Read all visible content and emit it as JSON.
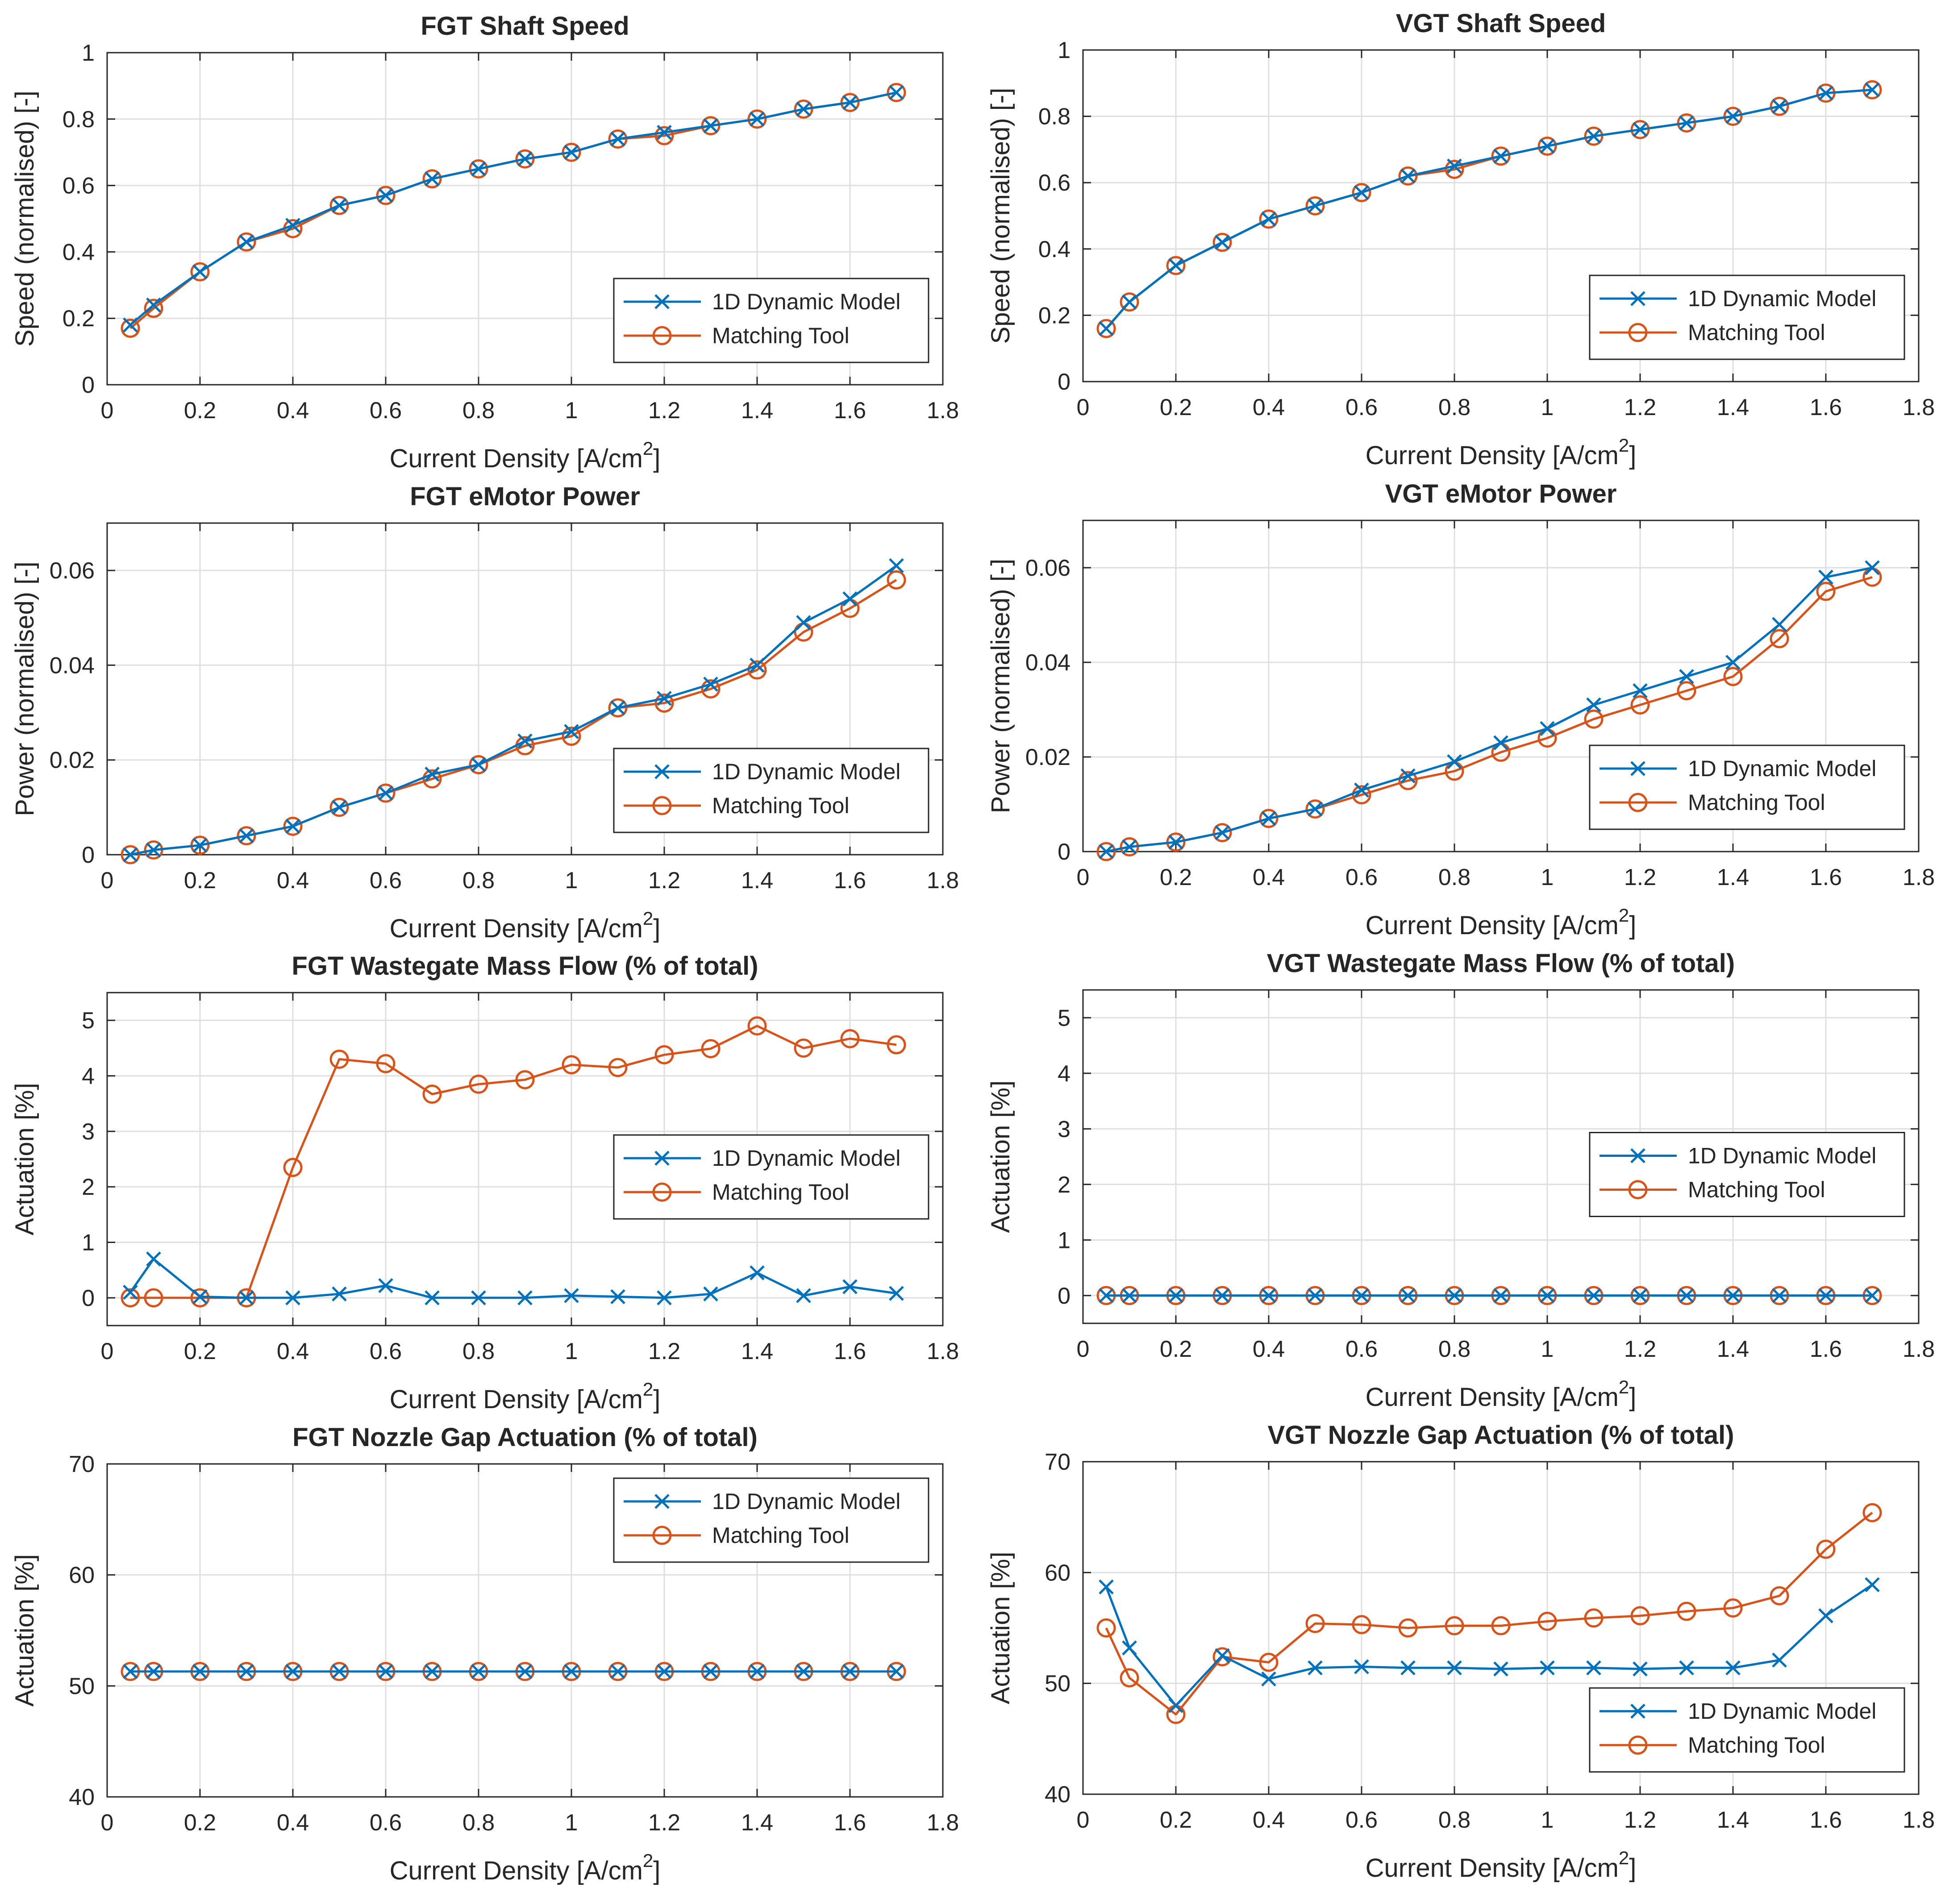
{
  "colors": {
    "model": "#0072BD",
    "tool": "#D95319"
  },
  "legend": {
    "model": "1D Dynamic Model",
    "tool": "Matching Tool"
  },
  "chart_data": [
    {
      "id": "fgt-shaft-speed",
      "type": "line",
      "title": "FGT Shaft Speed",
      "xlabel": "Current Density [A/cm",
      "xlabel_sup": "2",
      "xlabel_end": "]",
      "ylabel": "Speed (normalised) [-]",
      "xlim": [
        0,
        1.8
      ],
      "ylim": [
        0,
        1
      ],
      "xticks": [
        0,
        0.2,
        0.4,
        0.6,
        0.8,
        1,
        1.2,
        1.4,
        1.6,
        1.8
      ],
      "xticklabels": [
        "0",
        "0.2",
        "0.4",
        "0.6",
        "0.8",
        "1",
        "1.2",
        "1.4",
        "1.6",
        "1.8"
      ],
      "yticks": [
        0,
        0.2,
        0.4,
        0.6,
        0.8,
        1
      ],
      "yticklabels": [
        "0",
        "0.2",
        "0.4",
        "0.6",
        "0.8",
        "1"
      ],
      "legend_position": "bottom-right",
      "x": [
        0.05,
        0.1,
        0.2,
        0.3,
        0.4,
        0.5,
        0.6,
        0.7,
        0.8,
        0.9,
        1.0,
        1.1,
        1.2,
        1.3,
        1.4,
        1.5,
        1.6,
        1.7
      ],
      "series": [
        {
          "name": "1D Dynamic Model",
          "values": [
            0.18,
            0.24,
            0.34,
            0.43,
            0.48,
            0.54,
            0.57,
            0.62,
            0.65,
            0.68,
            0.7,
            0.74,
            0.76,
            0.78,
            0.8,
            0.83,
            0.85,
            0.88
          ]
        },
        {
          "name": "Matching Tool",
          "values": [
            0.17,
            0.23,
            0.34,
            0.43,
            0.47,
            0.54,
            0.57,
            0.62,
            0.65,
            0.68,
            0.7,
            0.74,
            0.75,
            0.78,
            0.8,
            0.83,
            0.85,
            0.88
          ]
        }
      ]
    },
    {
      "id": "vgt-shaft-speed",
      "type": "line",
      "title": "VGT Shaft Speed",
      "xlabel": "Current Density [A/cm",
      "xlabel_sup": "2",
      "xlabel_end": "]",
      "ylabel": "Speed (normalised) [-]",
      "xlim": [
        0,
        1.8
      ],
      "ylim": [
        0,
        1
      ],
      "xticks": [
        0,
        0.2,
        0.4,
        0.6,
        0.8,
        1,
        1.2,
        1.4,
        1.6,
        1.8
      ],
      "xticklabels": [
        "0",
        "0.2",
        "0.4",
        "0.6",
        "0.8",
        "1",
        "1.2",
        "1.4",
        "1.6",
        "1.8"
      ],
      "yticks": [
        0,
        0.2,
        0.4,
        0.6,
        0.8,
        1
      ],
      "yticklabels": [
        "0",
        "0.2",
        "0.4",
        "0.6",
        "0.8",
        "1"
      ],
      "legend_position": "bottom-right",
      "x": [
        0.05,
        0.1,
        0.2,
        0.3,
        0.4,
        0.5,
        0.6,
        0.7,
        0.8,
        0.9,
        1.0,
        1.1,
        1.2,
        1.3,
        1.4,
        1.5,
        1.6,
        1.7
      ],
      "series": [
        {
          "name": "1D Dynamic Model",
          "values": [
            0.16,
            0.24,
            0.35,
            0.42,
            0.49,
            0.53,
            0.57,
            0.62,
            0.65,
            0.68,
            0.71,
            0.74,
            0.76,
            0.78,
            0.8,
            0.83,
            0.87,
            0.88
          ]
        },
        {
          "name": "Matching Tool",
          "values": [
            0.16,
            0.24,
            0.35,
            0.42,
            0.49,
            0.53,
            0.57,
            0.62,
            0.64,
            0.68,
            0.71,
            0.74,
            0.76,
            0.78,
            0.8,
            0.83,
            0.87,
            0.88
          ]
        }
      ]
    },
    {
      "id": "fgt-emotor-power",
      "type": "line",
      "title": "FGT eMotor Power",
      "xlabel": "Current Density [A/cm",
      "xlabel_sup": "2",
      "xlabel_end": "]",
      "ylabel": "Power (normalised) [-]",
      "xlim": [
        0,
        1.8
      ],
      "ylim": [
        0,
        0.07
      ],
      "xticks": [
        0,
        0.2,
        0.4,
        0.6,
        0.8,
        1,
        1.2,
        1.4,
        1.6,
        1.8
      ],
      "xticklabels": [
        "0",
        "0.2",
        "0.4",
        "0.6",
        "0.8",
        "1",
        "1.2",
        "1.4",
        "1.6",
        "1.8"
      ],
      "yticks": [
        0,
        0.02,
        0.04,
        0.06
      ],
      "yticklabels": [
        "0",
        "0.02",
        "0.04",
        "0.06"
      ],
      "legend_position": "bottom-right",
      "x": [
        0.05,
        0.1,
        0.2,
        0.3,
        0.4,
        0.5,
        0.6,
        0.7,
        0.8,
        0.9,
        1.0,
        1.1,
        1.2,
        1.3,
        1.4,
        1.5,
        1.6,
        1.7
      ],
      "series": [
        {
          "name": "1D Dynamic Model",
          "values": [
            0.0,
            0.001,
            0.002,
            0.004,
            0.006,
            0.01,
            0.013,
            0.017,
            0.019,
            0.024,
            0.026,
            0.031,
            0.033,
            0.036,
            0.04,
            0.049,
            0.054,
            0.061
          ]
        },
        {
          "name": "Matching Tool",
          "values": [
            0.0,
            0.001,
            0.002,
            0.004,
            0.006,
            0.01,
            0.013,
            0.016,
            0.019,
            0.023,
            0.025,
            0.031,
            0.032,
            0.035,
            0.039,
            0.047,
            0.052,
            0.058
          ]
        }
      ]
    },
    {
      "id": "vgt-emotor-power",
      "type": "line",
      "title": "VGT eMotor Power",
      "xlabel": "Current Density [A/cm",
      "xlabel_sup": "2",
      "xlabel_end": "]",
      "ylabel": "Power (normalised) [-]",
      "xlim": [
        0,
        1.8
      ],
      "ylim": [
        0,
        0.07
      ],
      "xticks": [
        0,
        0.2,
        0.4,
        0.6,
        0.8,
        1,
        1.2,
        1.4,
        1.6,
        1.8
      ],
      "xticklabels": [
        "0",
        "0.2",
        "0.4",
        "0.6",
        "0.8",
        "1",
        "1.2",
        "1.4",
        "1.6",
        "1.8"
      ],
      "yticks": [
        0,
        0.02,
        0.04,
        0.06
      ],
      "yticklabels": [
        "0",
        "0.02",
        "0.04",
        "0.06"
      ],
      "legend_position": "bottom-right",
      "x": [
        0.05,
        0.1,
        0.2,
        0.3,
        0.4,
        0.5,
        0.6,
        0.7,
        0.8,
        0.9,
        1.0,
        1.1,
        1.2,
        1.3,
        1.4,
        1.5,
        1.6,
        1.7
      ],
      "series": [
        {
          "name": "1D Dynamic Model",
          "values": [
            0.0,
            0.001,
            0.002,
            0.004,
            0.007,
            0.009,
            0.013,
            0.016,
            0.019,
            0.023,
            0.026,
            0.031,
            0.034,
            0.037,
            0.04,
            0.048,
            0.058,
            0.06
          ]
        },
        {
          "name": "Matching Tool",
          "values": [
            0.0,
            0.001,
            0.002,
            0.004,
            0.007,
            0.009,
            0.012,
            0.015,
            0.017,
            0.021,
            0.024,
            0.028,
            0.031,
            0.034,
            0.037,
            0.045,
            0.055,
            0.058
          ]
        }
      ]
    },
    {
      "id": "fgt-wastegate",
      "type": "line",
      "title": "FGT Wastegate Mass Flow (% of total)",
      "xlabel": "Current Density [A/cm",
      "xlabel_sup": "2",
      "xlabel_end": "]",
      "ylabel": "Actuation [%]",
      "xlim": [
        0,
        1.8
      ],
      "ylim": [
        -0.5,
        5.5
      ],
      "xticks": [
        0,
        0.2,
        0.4,
        0.6,
        0.8,
        1,
        1.2,
        1.4,
        1.6,
        1.8
      ],
      "xticklabels": [
        "0",
        "0.2",
        "0.4",
        "0.6",
        "0.8",
        "1",
        "1.2",
        "1.4",
        "1.6",
        "1.8"
      ],
      "yticks": [
        0,
        1,
        2,
        3,
        4,
        5
      ],
      "yticklabels": [
        "0",
        "1",
        "2",
        "3",
        "4",
        "5"
      ],
      "legend_position": "middle-right",
      "x": [
        0.05,
        0.1,
        0.2,
        0.3,
        0.4,
        0.5,
        0.6,
        0.7,
        0.8,
        0.9,
        1.0,
        1.1,
        1.2,
        1.3,
        1.4,
        1.5,
        1.6,
        1.7
      ],
      "series": [
        {
          "name": "1D Dynamic Model",
          "values": [
            0.1,
            0.7,
            0.02,
            0.0,
            0.0,
            0.07,
            0.22,
            0.0,
            0.0,
            0.0,
            0.04,
            0.02,
            0.0,
            0.07,
            0.45,
            0.04,
            0.2,
            0.08
          ]
        },
        {
          "name": "Matching Tool",
          "values": [
            0.0,
            0.0,
            0.0,
            0.0,
            2.35,
            4.3,
            4.22,
            3.67,
            3.85,
            3.93,
            4.2,
            4.15,
            4.38,
            4.49,
            4.9,
            4.5,
            4.67,
            4.56
          ]
        }
      ]
    },
    {
      "id": "vgt-wastegate",
      "type": "line",
      "title": "VGT Wastegate Mass Flow (% of total)",
      "xlabel": "Current Density [A/cm",
      "xlabel_sup": "2",
      "xlabel_end": "]",
      "ylabel": "Actuation [%]",
      "xlim": [
        0,
        1.8
      ],
      "ylim": [
        -0.5,
        5.5
      ],
      "xticks": [
        0,
        0.2,
        0.4,
        0.6,
        0.8,
        1,
        1.2,
        1.4,
        1.6,
        1.8
      ],
      "xticklabels": [
        "0",
        "0.2",
        "0.4",
        "0.6",
        "0.8",
        "1",
        "1.2",
        "1.4",
        "1.6",
        "1.8"
      ],
      "yticks": [
        0,
        1,
        2,
        3,
        4,
        5
      ],
      "yticklabels": [
        "0",
        "1",
        "2",
        "3",
        "4",
        "5"
      ],
      "legend_position": "middle-right",
      "x": [
        0.05,
        0.1,
        0.2,
        0.3,
        0.4,
        0.5,
        0.6,
        0.7,
        0.8,
        0.9,
        1.0,
        1.1,
        1.2,
        1.3,
        1.4,
        1.5,
        1.6,
        1.7
      ],
      "series": [
        {
          "name": "1D Dynamic Model",
          "values": [
            0,
            0,
            0,
            0,
            0,
            0,
            0,
            0,
            0,
            0,
            0,
            0,
            0,
            0,
            0,
            0,
            0,
            0
          ]
        },
        {
          "name": "Matching Tool",
          "values": [
            0,
            0,
            0,
            0,
            0,
            0,
            0,
            0,
            0,
            0,
            0,
            0,
            0,
            0,
            0,
            0,
            0,
            0
          ]
        }
      ]
    },
    {
      "id": "fgt-nozzle",
      "type": "line",
      "title": "FGT Nozzle Gap Actuation (% of total)",
      "xlabel": "Current Density [A/cm",
      "xlabel_sup": "2",
      "xlabel_end": "]",
      "ylabel": "Actuation [%]",
      "xlim": [
        0,
        1.8
      ],
      "ylim": [
        40,
        70
      ],
      "xticks": [
        0,
        0.2,
        0.4,
        0.6,
        0.8,
        1,
        1.2,
        1.4,
        1.6,
        1.8
      ],
      "xticklabels": [
        "0",
        "0.2",
        "0.4",
        "0.6",
        "0.8",
        "1",
        "1.2",
        "1.4",
        "1.6",
        "1.8"
      ],
      "yticks": [
        40,
        50,
        60,
        70
      ],
      "yticklabels": [
        "40",
        "50",
        "60",
        "70"
      ],
      "legend_position": "top-right",
      "x": [
        0.05,
        0.1,
        0.2,
        0.3,
        0.4,
        0.5,
        0.6,
        0.7,
        0.8,
        0.9,
        1.0,
        1.1,
        1.2,
        1.3,
        1.4,
        1.5,
        1.6,
        1.7
      ],
      "series": [
        {
          "name": "1D Dynamic Model",
          "values": [
            51.3,
            51.3,
            51.3,
            51.3,
            51.3,
            51.3,
            51.3,
            51.3,
            51.3,
            51.3,
            51.3,
            51.3,
            51.3,
            51.3,
            51.3,
            51.3,
            51.3,
            51.3
          ]
        },
        {
          "name": "Matching Tool",
          "values": [
            51.3,
            51.3,
            51.3,
            51.3,
            51.3,
            51.3,
            51.3,
            51.3,
            51.3,
            51.3,
            51.3,
            51.3,
            51.3,
            51.3,
            51.3,
            51.3,
            51.3,
            51.3
          ]
        }
      ]
    },
    {
      "id": "vgt-nozzle",
      "type": "line",
      "title": "VGT Nozzle Gap Actuation (% of total)",
      "xlabel": "Current Density [A/cm",
      "xlabel_sup": "2",
      "xlabel_end": "]",
      "ylabel": "Actuation [%]",
      "xlim": [
        0,
        1.8
      ],
      "ylim": [
        40,
        70
      ],
      "xticks": [
        0,
        0.2,
        0.4,
        0.6,
        0.8,
        1,
        1.2,
        1.4,
        1.6,
        1.8
      ],
      "xticklabels": [
        "0",
        "0.2",
        "0.4",
        "0.6",
        "0.8",
        "1",
        "1.2",
        "1.4",
        "1.6",
        "1.8"
      ],
      "yticks": [
        40,
        50,
        60,
        70
      ],
      "yticklabels": [
        "40",
        "50",
        "60",
        "70"
      ],
      "legend_position": "bottom-right",
      "x": [
        0.05,
        0.1,
        0.2,
        0.3,
        0.4,
        0.5,
        0.6,
        0.7,
        0.8,
        0.9,
        1.0,
        1.1,
        1.2,
        1.3,
        1.4,
        1.5,
        1.6,
        1.7
      ],
      "series": [
        {
          "name": "1D Dynamic Model",
          "values": [
            58.7,
            53.2,
            48.0,
            52.5,
            50.4,
            51.4,
            51.5,
            51.4,
            51.4,
            51.3,
            51.4,
            51.4,
            51.3,
            51.4,
            51.4,
            52.1,
            56.1,
            58.9
          ]
        },
        {
          "name": "Matching Tool",
          "values": [
            55.0,
            50.5,
            47.2,
            52.4,
            51.9,
            55.4,
            55.3,
            55.0,
            55.2,
            55.2,
            55.6,
            55.9,
            56.1,
            56.5,
            56.8,
            57.9,
            62.1,
            65.4
          ]
        }
      ]
    }
  ]
}
